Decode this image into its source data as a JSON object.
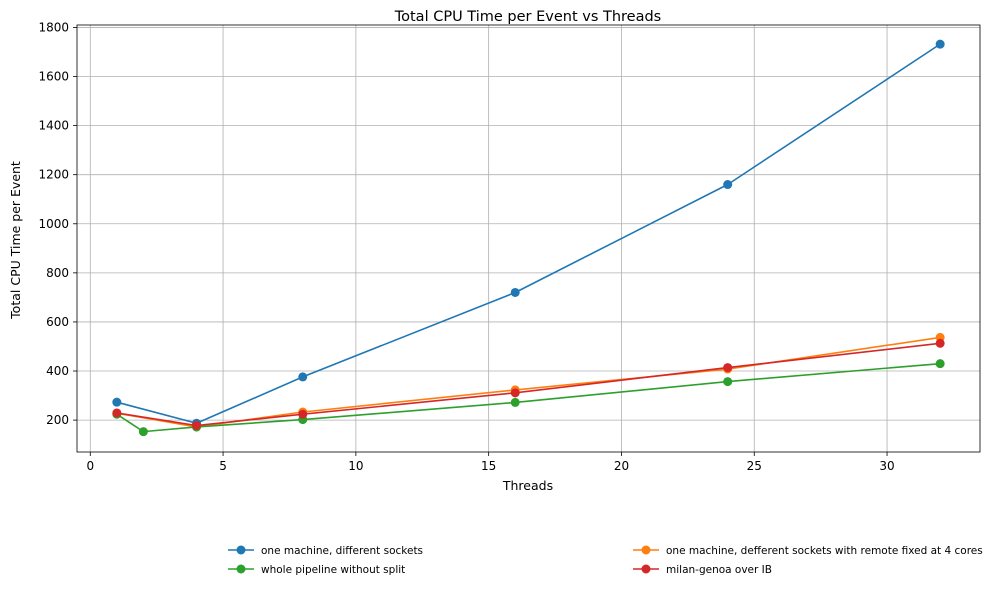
{
  "chart_data": {
    "type": "line",
    "title": "Total CPU Time per Event vs Threads",
    "xlabel": "Threads",
    "ylabel": "Total CPU Time per Event",
    "xlim": [
      -0.5,
      33.5
    ],
    "ylim": [
      70,
      1810
    ],
    "xticks": [
      0,
      5,
      10,
      15,
      20,
      25,
      30
    ],
    "yticks": [
      200,
      400,
      600,
      800,
      1000,
      1200,
      1400,
      1600,
      1800
    ],
    "grid": true,
    "legend_position": "bottom-center, below plot, 2 columns",
    "series": [
      {
        "name": "one machine, different sockets",
        "color": "#1f77b4",
        "x": [
          1,
          4,
          8,
          16,
          24,
          32
        ],
        "y": [
          273,
          187,
          376,
          720,
          1160,
          1732
        ]
      },
      {
        "name": "one machine, defferent sockets with remote fixed at 4 cores",
        "color": "#ff7f0e",
        "x": [
          1,
          4,
          8,
          16,
          24,
          32
        ],
        "y": [
          228,
          172,
          233,
          323,
          408,
          537
        ]
      },
      {
        "name": "whole pipeline without split",
        "color": "#2ca02c",
        "x": [
          1,
          2,
          4,
          8,
          16,
          24,
          32
        ],
        "y": [
          224,
          153,
          172,
          202,
          272,
          357,
          430
        ]
      },
      {
        "name": "milan-genoa over IB",
        "color": "#d62728",
        "x": [
          1,
          4,
          8,
          16,
          24,
          32
        ],
        "y": [
          229,
          178,
          224,
          311,
          414,
          513
        ]
      }
    ]
  }
}
